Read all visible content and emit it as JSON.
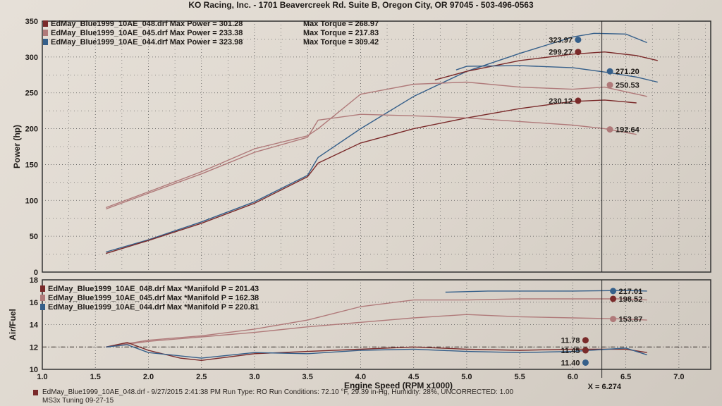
{
  "header": {
    "text": "KO Racing, Inc. - 1701 Beavercreek Rd. Suite B, Oregon City, OR 97045 - 503-496-0563"
  },
  "footer": {
    "line1": "EdMay_Blue1999_10AE_048.drf - 9/27/2015 2:41:38 PM  Run Type: RO  Run Conditions: 72.10 °F, 29.39 in-Hg, Humidity: 28%, UNCORRECTED: 1.00",
    "line2": "MS3x Tuning 09-27-15"
  },
  "colors": {
    "run048": "#7a2a2a",
    "run045": "#b07a7a",
    "run044": "#355f8a",
    "grid": "#555555",
    "frame": "#333333"
  },
  "chart_data": [
    {
      "type": "line",
      "ylabel": "Power (hp)",
      "xlim": [
        1.0,
        7.3
      ],
      "ylim": [
        0,
        350
      ],
      "yticks": [
        "0",
        "50",
        "100",
        "150",
        "200",
        "250",
        "300",
        "350"
      ],
      "grid": true,
      "legend_position": "top-left",
      "legend": [
        {
          "run": "EdMay_Blue1999_10AE_048.drf",
          "power_label": "Max Power = 301.28",
          "torque_label": "Max Torque = 268.97",
          "color": "#7a2a2a"
        },
        {
          "run": "EdMay_Blue1999_10AE_045.drf",
          "power_label": "Max Power = 233.38",
          "torque_label": "Max Torque = 217.83",
          "color": "#b07a7a"
        },
        {
          "run": "EdMay_Blue1999_10AE_044.drf",
          "power_label": "Max Power = 323.98",
          "torque_label": "Max Torque = 309.42",
          "color": "#355f8a"
        }
      ],
      "cursor_x": 6.274,
      "cursor_values": [
        {
          "value": 323.97,
          "label": "323.97",
          "color": "#355f8a"
        },
        {
          "value": 307,
          "label": "299.27",
          "color": "#7a2a2a"
        },
        {
          "value": 280,
          "label": "271.20",
          "color": "#355f8a"
        },
        {
          "value": 261,
          "label": "250.53",
          "color": "#b07a7a"
        },
        {
          "value": 239,
          "label": "230.12",
          "color": "#7a2a2a"
        },
        {
          "value": 199,
          "label": "192.64",
          "color": "#b07a7a"
        }
      ],
      "series": [
        {
          "color": "#355f8a",
          "points": [
            [
              1.6,
              28
            ],
            [
              2.0,
              45
            ],
            [
              2.5,
              70
            ],
            [
              3.0,
              98
            ],
            [
              3.5,
              135
            ],
            [
              3.6,
              160
            ],
            [
              4.0,
              200
            ],
            [
              4.5,
              245
            ],
            [
              5.0,
              280
            ],
            [
              5.5,
              305
            ],
            [
              6.0,
              328
            ],
            [
              6.2,
              333
            ],
            [
              6.5,
              332
            ],
            [
              6.7,
              320
            ]
          ]
        },
        {
          "color": "#7a2a2a",
          "points": [
            [
              1.6,
              26
            ],
            [
              2.0,
              44
            ],
            [
              2.5,
              68
            ],
            [
              3.0,
              96
            ],
            [
              3.5,
              133
            ],
            [
              3.6,
              152
            ],
            [
              4.0,
              180
            ],
            [
              4.5,
              200
            ],
            [
              5.0,
              215
            ],
            [
              5.5,
              228
            ],
            [
              6.0,
              238
            ],
            [
              6.3,
              240
            ],
            [
              6.6,
              236
            ]
          ]
        },
        {
          "color": "#7a2a2a",
          "points": [
            [
              4.7,
              268
            ],
            [
              5.0,
              280
            ],
            [
              5.5,
              295
            ],
            [
              6.0,
              304
            ],
            [
              6.3,
              307
            ],
            [
              6.6,
              302
            ],
            [
              6.8,
              295
            ]
          ]
        },
        {
          "color": "#b07a7a",
          "points": [
            [
              1.6,
              90
            ],
            [
              2.0,
              112
            ],
            [
              2.5,
              140
            ],
            [
              3.0,
              172
            ],
            [
              3.5,
              190
            ],
            [
              3.6,
              200
            ],
            [
              4.0,
              248
            ],
            [
              4.5,
              262
            ],
            [
              5.0,
              265
            ],
            [
              5.5,
              258
            ],
            [
              6.0,
              255
            ],
            [
              6.3,
              258
            ],
            [
              6.7,
              245
            ]
          ]
        },
        {
          "color": "#b07a7a",
          "points": [
            [
              1.6,
              88
            ],
            [
              2.0,
              110
            ],
            [
              2.5,
              137
            ],
            [
              3.0,
              167
            ],
            [
              3.5,
              188
            ],
            [
              3.6,
              212
            ],
            [
              4.0,
              220
            ],
            [
              4.5,
              218
            ],
            [
              5.0,
              215
            ],
            [
              5.5,
              210
            ],
            [
              6.0,
              205
            ],
            [
              6.3,
              200
            ],
            [
              6.6,
              192
            ]
          ]
        },
        {
          "color": "#355f8a",
          "points": [
            [
              4.9,
              282
            ],
            [
              5.0,
              287
            ],
            [
              5.5,
              288
            ],
            [
              6.0,
              285
            ],
            [
              6.3,
              279
            ],
            [
              6.6,
              272
            ],
            [
              6.8,
              265
            ]
          ]
        }
      ]
    },
    {
      "type": "line",
      "xlabel": "Engine Speed (RPM x1000)",
      "ylabel": "Air/Fuel",
      "xlim": [
        1.0,
        7.3
      ],
      "ylim": [
        10,
        18
      ],
      "xticks": [
        "1.0",
        "1.5",
        "2.0",
        "2.5",
        "3.0",
        "3.5",
        "4.0",
        "4.5",
        "5.0",
        "5.5",
        "6.0",
        "6.5",
        "7.0"
      ],
      "yticks": [
        "10",
        "12",
        "14",
        "16",
        "18"
      ],
      "grid": true,
      "legend_position": "top-left",
      "legend": [
        {
          "run": "EdMay_Blue1999_10AE_048.drf",
          "label": "Max *Manifold P = 201.43",
          "color": "#7a2a2a"
        },
        {
          "run": "EdMay_Blue1999_10AE_045.drf",
          "label": "Max *Manifold P = 162.38",
          "color": "#b07a7a"
        },
        {
          "run": "EdMay_Blue1999_10AE_044.drf",
          "label": "Max *Manifold P = 220.81",
          "color": "#355f8a"
        }
      ],
      "cursor_label": "X = 6.274",
      "reference_line": 12.0,
      "cursor_values": [
        {
          "value": 17.0,
          "label": "217.01",
          "color": "#355f8a"
        },
        {
          "value": 16.3,
          "label": "198.52",
          "color": "#7a2a2a"
        },
        {
          "value": 14.5,
          "label": "153.87",
          "color": "#b07a7a"
        },
        {
          "value": 12.6,
          "label": "11.78",
          "color": "#7a2a2a"
        },
        {
          "value": 11.7,
          "label": "11.45",
          "color": "#7a2a2a"
        },
        {
          "value": 10.6,
          "label": "11.40",
          "color": "#355f8a"
        }
      ],
      "series": [
        {
          "color": "#355f8a",
          "points": [
            [
              4.8,
              16.9
            ],
            [
              5.2,
              17.0
            ],
            [
              5.6,
              17.0
            ],
            [
              6.0,
              17.0
            ],
            [
              6.5,
              17.05
            ],
            [
              6.7,
              17.0
            ]
          ]
        },
        {
          "color": "#b07a7a",
          "points": [
            [
              1.6,
              12.0
            ],
            [
              2.0,
              12.6
            ],
            [
              2.5,
              13.0
            ],
            [
              3.0,
              13.6
            ],
            [
              3.5,
              14.4
            ],
            [
              4.0,
              15.6
            ],
            [
              4.5,
              16.2
            ],
            [
              5.0,
              16.2
            ],
            [
              5.5,
              16.3
            ],
            [
              6.0,
              16.3
            ],
            [
              6.5,
              16.3
            ],
            [
              6.7,
              16.2
            ]
          ]
        },
        {
          "color": "#b07a7a",
          "points": [
            [
              1.6,
              12.0
            ],
            [
              2.0,
              12.5
            ],
            [
              2.5,
              12.9
            ],
            [
              3.0,
              13.3
            ],
            [
              3.5,
              13.8
            ],
            [
              4.0,
              14.2
            ],
            [
              4.5,
              14.6
            ],
            [
              5.0,
              14.9
            ],
            [
              5.5,
              14.7
            ],
            [
              6.0,
              14.6
            ],
            [
              6.5,
              14.5
            ],
            [
              6.7,
              14.4
            ]
          ]
        },
        {
          "color": "#7a2a2a",
          "points": [
            [
              1.6,
              12.0
            ],
            [
              1.8,
              12.4
            ],
            [
              2.0,
              11.7
            ],
            [
              2.3,
              11.0
            ],
            [
              2.5,
              10.8
            ],
            [
              3.0,
              11.4
            ],
            [
              3.5,
              11.6
            ],
            [
              4.0,
              11.8
            ],
            [
              4.5,
              12.0
            ],
            [
              5.0,
              11.8
            ],
            [
              5.5,
              11.7
            ],
            [
              6.0,
              11.8
            ],
            [
              6.5,
              11.8
            ],
            [
              6.7,
              11.5
            ]
          ]
        },
        {
          "color": "#355f8a",
          "points": [
            [
              1.6,
              12.0
            ],
            [
              1.8,
              12.2
            ],
            [
              2.0,
              11.5
            ],
            [
              2.3,
              11.2
            ],
            [
              2.5,
              11.0
            ],
            [
              3.0,
              11.5
            ],
            [
              3.5,
              11.4
            ],
            [
              4.0,
              11.7
            ],
            [
              4.5,
              11.8
            ],
            [
              5.0,
              11.6
            ],
            [
              5.5,
              11.5
            ],
            [
              6.0,
              11.6
            ],
            [
              6.5,
              11.9
            ],
            [
              6.7,
              11.3
            ]
          ]
        }
      ]
    }
  ]
}
